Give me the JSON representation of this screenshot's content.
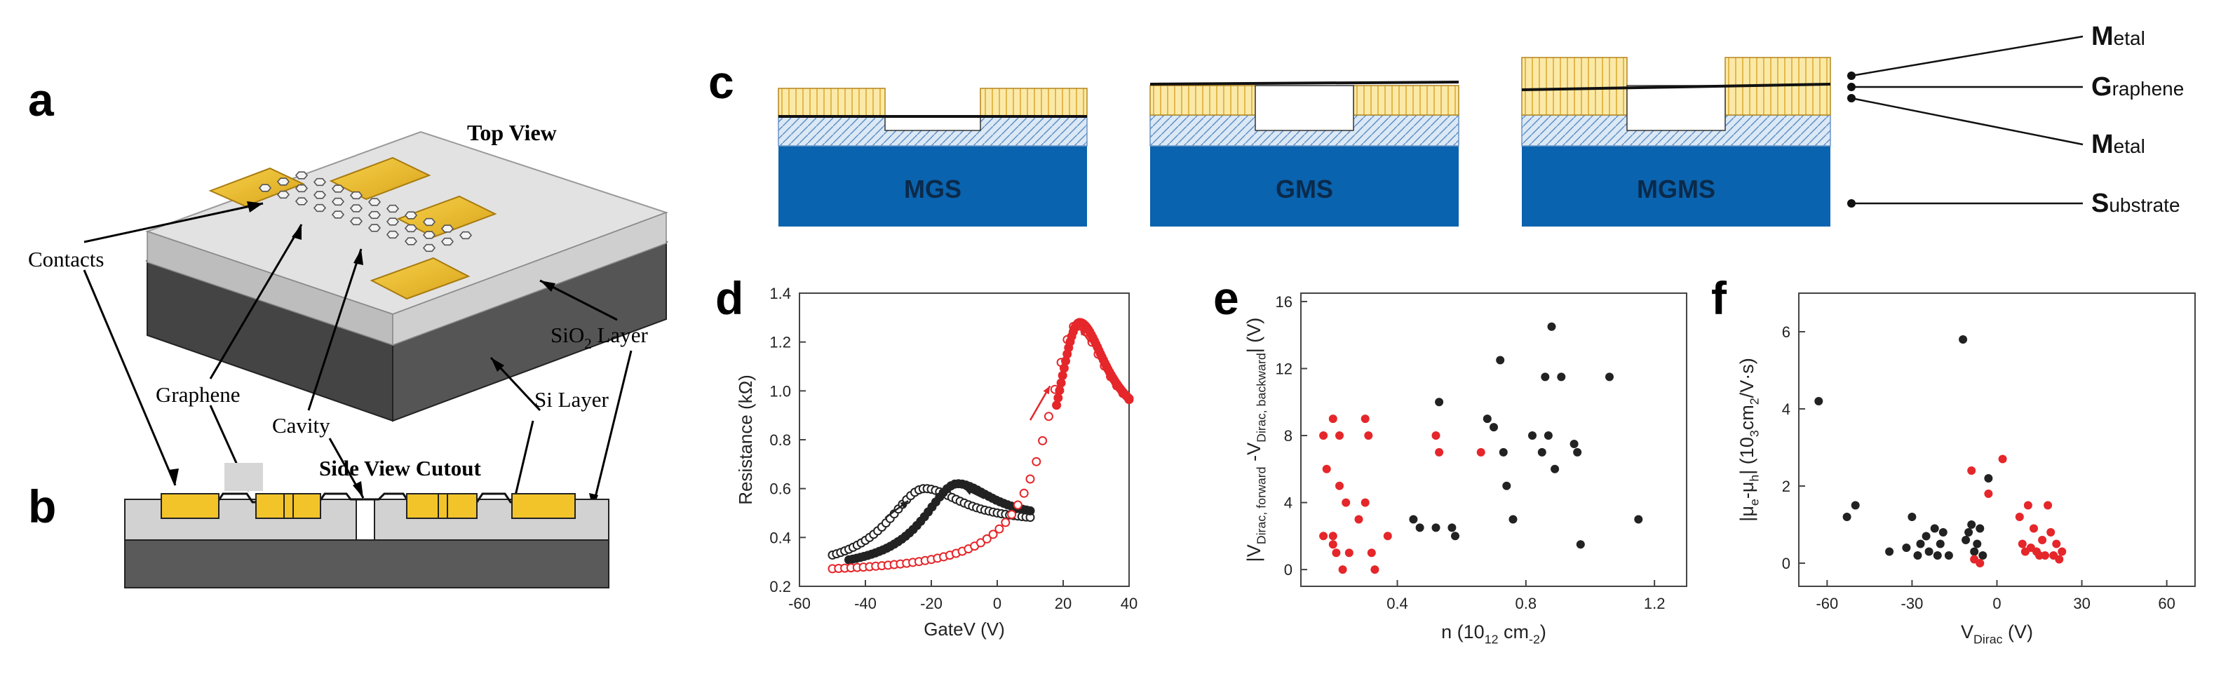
{
  "panels": {
    "a": {
      "letter": "a",
      "top_view": "Top View",
      "contacts": "Contacts",
      "graphene": "Graphene",
      "cavity": "Cavity",
      "sio2_pre": "SiO",
      "sio2_sub": "2",
      "sio2_post": " Layer",
      "si_layer": "Si Layer"
    },
    "b": {
      "letter": "b",
      "side_view": "Side View Cutout"
    },
    "c": {
      "letter": "c",
      "devices": [
        "MGS",
        "GMS",
        "MGMS"
      ],
      "legend": [
        {
          "cap": "M",
          "rest": "etal"
        },
        {
          "cap": "G",
          "rest": "raphene"
        },
        {
          "cap": "M",
          "rest": "etal"
        },
        {
          "cap": "S",
          "rest": "ubstrate"
        }
      ]
    },
    "d": {
      "letter": "d"
    },
    "e": {
      "letter": "e"
    },
    "f": {
      "letter": "f"
    }
  },
  "colors": {
    "gold": "#f2c42a",
    "gold_hatch": "#fbe9a8",
    "substrate_blue": "#0a63ae",
    "light_blue": "#dbe8f5",
    "red": "#e5262a",
    "black": "#222222",
    "si_dark": "#555555",
    "sio2_gray": "#cfcfcf"
  },
  "chart_data": [
    {
      "panel": "d",
      "type": "line",
      "xlabel": "GateV (V)",
      "ylabel": "Resistance (kΩ)",
      "xlim": [
        -60,
        40
      ],
      "ylim": [
        0.2,
        1.4
      ],
      "xticks": [
        -60,
        -40,
        -20,
        0,
        20,
        40
      ],
      "yticks": [
        0.2,
        0.4,
        0.6,
        0.8,
        1.0,
        1.2,
        1.4
      ],
      "xticklabels": [
        "-60",
        "-40",
        "-20",
        "0",
        "20",
        "40"
      ],
      "yticklabels": [
        "0.2",
        "0.4",
        "0.6",
        "0.8",
        "1.0",
        "1.2",
        "1.4"
      ],
      "series": [
        {
          "color": "#222222",
          "marker": "open",
          "curve": "lorentz",
          "range": [
            -50,
            10
          ],
          "peak_x": -22,
          "peak_y": 0.6,
          "base": 0.26,
          "width": 14,
          "floor_right": 0.46
        },
        {
          "color": "#222222",
          "marker": "filled",
          "curve": "lorentz",
          "range": [
            -45,
            10
          ],
          "peak_x": -12,
          "peak_y": 0.62,
          "base": 0.26,
          "width": 13,
          "floor_right": 0.47
        },
        {
          "color": "#e5262a",
          "marker": "open",
          "curve": "lorentz",
          "range": [
            -50,
            40
          ],
          "peak_x": 24,
          "peak_y": 1.27,
          "base": 0.25,
          "width": 11,
          "floor_right": 0.82
        },
        {
          "color": "#e5262a",
          "marker": "filled",
          "curve": "lorentz",
          "range": [
            18,
            40
          ],
          "peak_x": 25,
          "peak_y": 1.28,
          "base": 0.25,
          "width": 10,
          "floor_right": 0.83
        }
      ]
    },
    {
      "panel": "e",
      "type": "scatter",
      "xlabel_parts": [
        "n (10",
        "12",
        " cm",
        "-2",
        ")"
      ],
      "ylabel_parts": [
        "|V",
        "Dirac, forward",
        " -V",
        "Dirac, backward",
        "| (V)"
      ],
      "xlim": [
        0.1,
        1.3
      ],
      "ylim": [
        -1,
        16.5
      ],
      "xticks": [
        0.4,
        0.8,
        1.2
      ],
      "yticks": [
        0,
        4,
        8,
        12,
        16
      ],
      "xticklabels": [
        "0.4",
        "0.8",
        "1.2"
      ],
      "yticklabels": [
        "0",
        "4",
        "8",
        "12",
        "16"
      ],
      "series": [
        {
          "color": "#e5262a",
          "points": [
            [
              0.17,
              8
            ],
            [
              0.2,
              9
            ],
            [
              0.22,
              8
            ],
            [
              0.18,
              6
            ],
            [
              0.17,
              2
            ],
            [
              0.2,
              2
            ],
            [
              0.21,
              1
            ],
            [
              0.23,
              0
            ],
            [
              0.22,
              5
            ],
            [
              0.24,
              4
            ],
            [
              0.25,
              1
            ],
            [
              0.28,
              3
            ],
            [
              0.3,
              9
            ],
            [
              0.31,
              8
            ],
            [
              0.3,
              4
            ],
            [
              0.32,
              1
            ],
            [
              0.33,
              0
            ],
            [
              0.2,
              1.5
            ],
            [
              0.37,
              2
            ],
            [
              0.52,
              8
            ],
            [
              0.53,
              7
            ],
            [
              0.66,
              7
            ]
          ]
        },
        {
          "color": "#222222",
          "points": [
            [
              0.45,
              3
            ],
            [
              0.47,
              2.5
            ],
            [
              0.52,
              2.5
            ],
            [
              0.53,
              10
            ],
            [
              0.57,
              2.5
            ],
            [
              0.58,
              2
            ],
            [
              0.68,
              9
            ],
            [
              0.7,
              8.5
            ],
            [
              0.72,
              12.5
            ],
            [
              0.73,
              7
            ],
            [
              0.74,
              5
            ],
            [
              0.76,
              3
            ],
            [
              0.82,
              8
            ],
            [
              0.85,
              7
            ],
            [
              0.86,
              11.5
            ],
            [
              0.87,
              8
            ],
            [
              0.88,
              14.5
            ],
            [
              0.89,
              6
            ],
            [
              0.91,
              11.5
            ],
            [
              0.95,
              7.5
            ],
            [
              0.96,
              7
            ],
            [
              0.97,
              1.5
            ],
            [
              1.06,
              11.5
            ],
            [
              1.15,
              3
            ]
          ]
        }
      ]
    },
    {
      "panel": "f",
      "type": "scatter",
      "xlabel_parts": [
        "V",
        "Dirac",
        " (V)"
      ],
      "ylabel_parts": [
        "|μ",
        "e",
        "-μ",
        "h",
        "|  (10",
        "3",
        "cm",
        "2",
        "/V·s)"
      ],
      "xlim": [
        -70,
        70
      ],
      "ylim": [
        -0.6,
        7
      ],
      "xticks": [
        -60,
        -30,
        0,
        30,
        60
      ],
      "yticks": [
        0,
        2,
        4,
        6
      ],
      "xticklabels": [
        "-60",
        "-30",
        "0",
        "30",
        "60"
      ],
      "yticklabels": [
        "0",
        "2",
        "4",
        "6"
      ],
      "series": [
        {
          "color": "#222222",
          "points": [
            [
              -63,
              4.2
            ],
            [
              -53,
              1.2
            ],
            [
              -50,
              1.5
            ],
            [
              -38,
              0.3
            ],
            [
              -32,
              0.4
            ],
            [
              -30,
              1.2
            ],
            [
              -28,
              0.2
            ],
            [
              -27,
              0.5
            ],
            [
              -25,
              0.7
            ],
            [
              -24,
              0.3
            ],
            [
              -22,
              0.9
            ],
            [
              -21,
              0.2
            ],
            [
              -20,
              0.5
            ],
            [
              -19,
              0.8
            ],
            [
              -17,
              0.2
            ],
            [
              -12,
              5.8
            ],
            [
              -11,
              0.6
            ],
            [
              -10,
              0.8
            ],
            [
              -9,
              1.0
            ],
            [
              -8,
              0.3
            ],
            [
              -7,
              0.5
            ],
            [
              -6,
              0.9
            ],
            [
              -5,
              0.2
            ],
            [
              -3,
              2.2
            ]
          ]
        },
        {
          "color": "#e5262a",
          "points": [
            [
              -9,
              2.4
            ],
            [
              -8,
              0.1
            ],
            [
              -6,
              0.0
            ],
            [
              -3,
              1.8
            ],
            [
              2,
              2.7
            ],
            [
              8,
              1.2
            ],
            [
              9,
              0.5
            ],
            [
              10,
              0.3
            ],
            [
              11,
              1.5
            ],
            [
              12,
              0.4
            ],
            [
              13,
              0.9
            ],
            [
              14,
              0.3
            ],
            [
              15,
              0.2
            ],
            [
              16,
              0.6
            ],
            [
              17,
              0.2
            ],
            [
              18,
              1.5
            ],
            [
              19,
              0.8
            ],
            [
              20,
              0.2
            ],
            [
              21,
              0.5
            ],
            [
              22,
              0.1
            ],
            [
              23,
              0.3
            ]
          ]
        }
      ]
    }
  ]
}
